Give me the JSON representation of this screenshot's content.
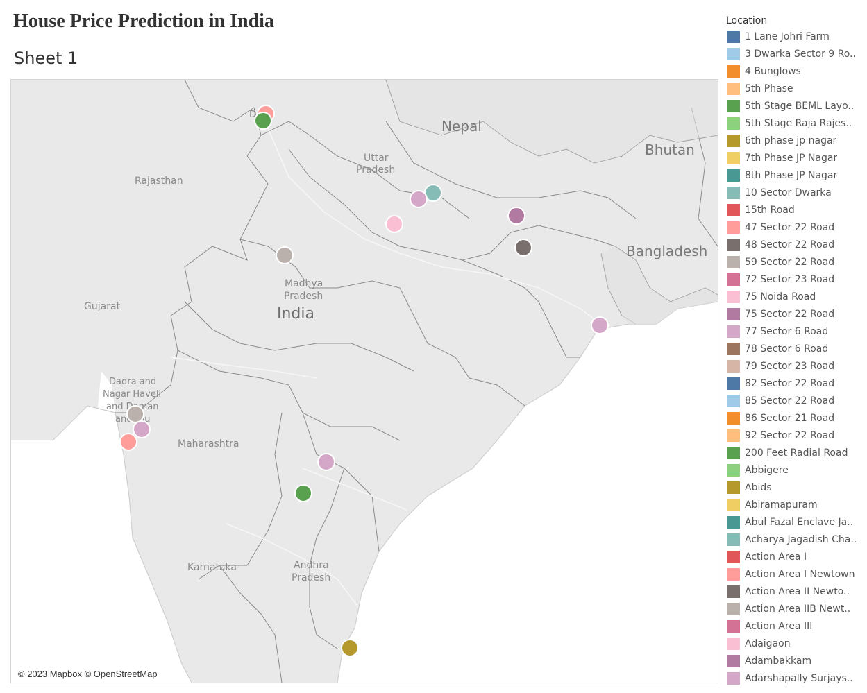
{
  "header": {
    "title": "House Price Prediction in India",
    "sheet": "Sheet 1"
  },
  "map": {
    "attribution": "© 2023 Mapbox © OpenStreetMap",
    "labels": {
      "nepal": "Nepal",
      "bhutan": "Bhutan",
      "bangladesh": "Bangladesh",
      "india": "India",
      "rajasthan": "Rajasthan",
      "uttar_pradesh_1": "Uttar",
      "uttar_pradesh_2": "Pradesh",
      "madhya_pradesh_1": "Madhya",
      "madhya_pradesh_2": "Pradesh",
      "gujarat": "Gujarat",
      "dadra_1": "Dadra and",
      "dadra_2": "Nagar Haveli",
      "dadra_3": "and Daman",
      "dadra_4": "and Diu",
      "maharashtra": "Maharashtra",
      "karnataka": "Karnataka",
      "andhra_1": "Andhra",
      "andhra_2": "Pradesh",
      "delhi": "D"
    },
    "colors": {
      "land": "#e9e9e9",
      "water": "#ffffff",
      "border": "#8a8a8a"
    },
    "markers": [
      {
        "location": "47 Sector 22 Road",
        "color": "#ff9d9a"
      },
      {
        "location": "5th Stage BEML Layo..",
        "color": "#59a14f"
      },
      {
        "location": "Acharya Jagadish Cha..",
        "color": "#86bcb6"
      },
      {
        "location": "77 Sector 6 Road",
        "color": "#d4a6c8"
      },
      {
        "location": "75 Noida Road",
        "color": "#fabfd2"
      },
      {
        "location": "75 Sector 22 Road",
        "color": "#b07aa1"
      },
      {
        "location": "48 Sector 22 Road",
        "color": "#79706e"
      },
      {
        "location": "59 Sector 22 Road",
        "color": "#bab0ac"
      },
      {
        "location": "Adarshapally Surjays..",
        "color": "#d4a6c8"
      },
      {
        "location": "Action Area IIB Newt..",
        "color": "#bab0ac"
      },
      {
        "location": "77 Sector 6 Road",
        "color": "#d4a6c8"
      },
      {
        "location": "Action Area I Newtown",
        "color": "#ff9d9a"
      },
      {
        "location": "77 Sector 6 Road",
        "color": "#d4a6c8"
      },
      {
        "location": "200 Feet Radial Road",
        "color": "#59a14f"
      },
      {
        "location": "Abids",
        "color": "#b6992d"
      }
    ]
  },
  "legend": {
    "title": "Location",
    "items": [
      {
        "label": "1 Lane Johri Farm",
        "color": "#4e79a7"
      },
      {
        "label": "3 Dwarka Sector 9 Ro..",
        "color": "#a0cbe8"
      },
      {
        "label": "4 Bunglows",
        "color": "#f28e2b"
      },
      {
        "label": "5th Phase",
        "color": "#ffbe7d"
      },
      {
        "label": "5th Stage BEML Layo..",
        "color": "#59a14f"
      },
      {
        "label": "5th Stage Raja Rajes..",
        "color": "#8cd17d"
      },
      {
        "label": "6th phase jp nagar",
        "color": "#b6992d"
      },
      {
        "label": "7th Phase JP Nagar",
        "color": "#f1ce63"
      },
      {
        "label": "8th Phase JP Nagar",
        "color": "#499894"
      },
      {
        "label": "10 Sector Dwarka",
        "color": "#86bcb6"
      },
      {
        "label": "15th Road",
        "color": "#e15759"
      },
      {
        "label": "47 Sector 22 Road",
        "color": "#ff9d9a"
      },
      {
        "label": "48 Sector 22 Road",
        "color": "#79706e"
      },
      {
        "label": "59 Sector 22 Road",
        "color": "#bab0ac"
      },
      {
        "label": "72 Sector 23 Road",
        "color": "#d37295"
      },
      {
        "label": "75 Noida Road",
        "color": "#fabfd2"
      },
      {
        "label": "75 Sector 22 Road",
        "color": "#b07aa1"
      },
      {
        "label": "77 Sector 6 Road",
        "color": "#d4a6c8"
      },
      {
        "label": "78 Sector 6 Road",
        "color": "#9d7660"
      },
      {
        "label": "79 Sector 23 Road",
        "color": "#d7b5a6"
      },
      {
        "label": "82 Sector 22 Road",
        "color": "#4e79a7"
      },
      {
        "label": "85 Sector 22 Road",
        "color": "#a0cbe8"
      },
      {
        "label": "86 Sector 21 Road",
        "color": "#f28e2b"
      },
      {
        "label": "92 Sector 22 Road",
        "color": "#ffbe7d"
      },
      {
        "label": "200 Feet Radial Road",
        "color": "#59a14f"
      },
      {
        "label": "Abbigere",
        "color": "#8cd17d"
      },
      {
        "label": "Abids",
        "color": "#b6992d"
      },
      {
        "label": "Abiramapuram",
        "color": "#f1ce63"
      },
      {
        "label": "Abul Fazal Enclave Ja..",
        "color": "#499894"
      },
      {
        "label": "Acharya Jagadish Cha..",
        "color": "#86bcb6"
      },
      {
        "label": "Action Area I",
        "color": "#e15759"
      },
      {
        "label": "Action Area I Newtown",
        "color": "#ff9d9a"
      },
      {
        "label": "Action Area II Newto..",
        "color": "#79706e"
      },
      {
        "label": "Action Area IIB Newt..",
        "color": "#bab0ac"
      },
      {
        "label": "Action Area III",
        "color": "#d37295"
      },
      {
        "label": "Adaigaon",
        "color": "#fabfd2"
      },
      {
        "label": "Adambakkam",
        "color": "#b07aa1"
      },
      {
        "label": "Adarshapally Surjays..",
        "color": "#d4a6c8"
      }
    ]
  }
}
